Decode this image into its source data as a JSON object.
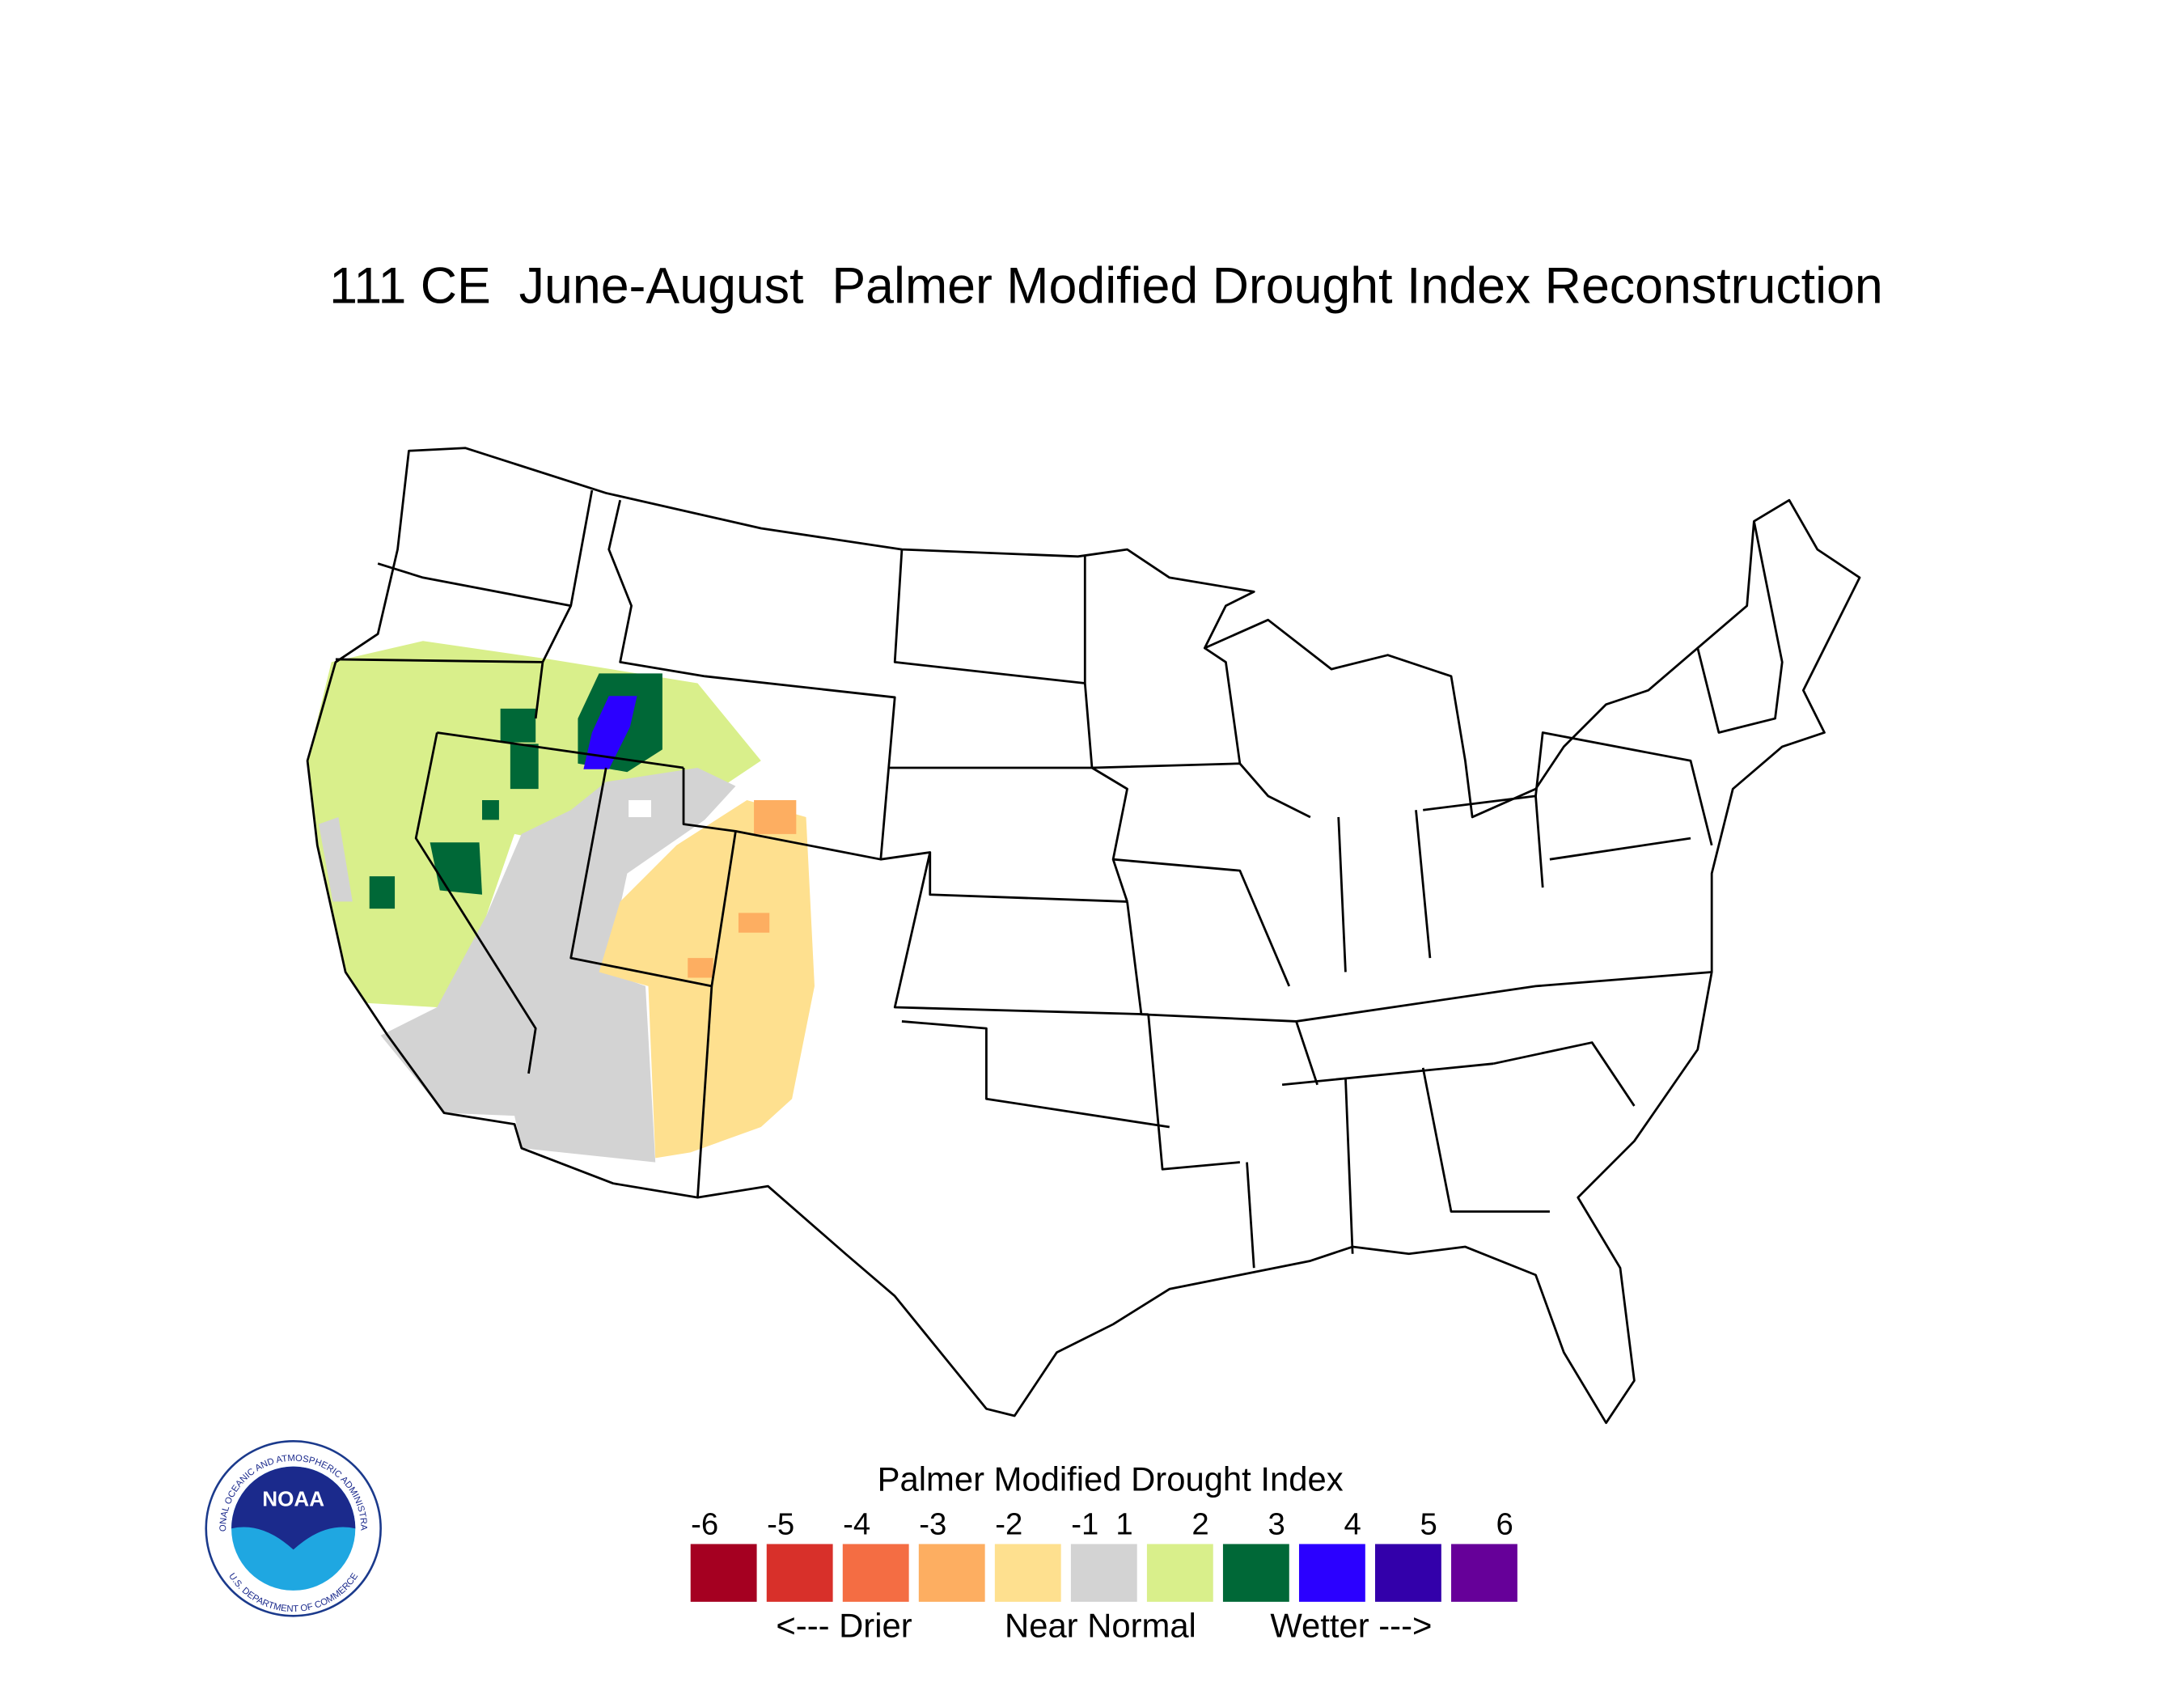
{
  "title": "111 CE  June-August  Palmer Modified Drought Index Reconstruction",
  "legend": {
    "title": "Palmer Modified Drought Index",
    "ticks": [
      -6,
      -5,
      -4,
      -3,
      -2,
      -1,
      1,
      2,
      3,
      4,
      5,
      6
    ],
    "colors": [
      "#a50021",
      "#d8302a",
      "#f46d43",
      "#fdae61",
      "#fee08f",
      "#d3d3d3",
      "#d9ef8b",
      "#006837",
      "#2b00ff",
      "#3300aa",
      "#660099"
    ],
    "annotations": [
      "<--- Drier",
      "Near Normal",
      "Wetter --->"
    ]
  },
  "logo": {
    "name": "NOAA",
    "ring_top": "NATIONAL OCEANIC AND ATMOSPHERIC ADMINISTRATION",
    "ring_bottom": "U.S. DEPARTMENT OF COMMERCE"
  }
}
